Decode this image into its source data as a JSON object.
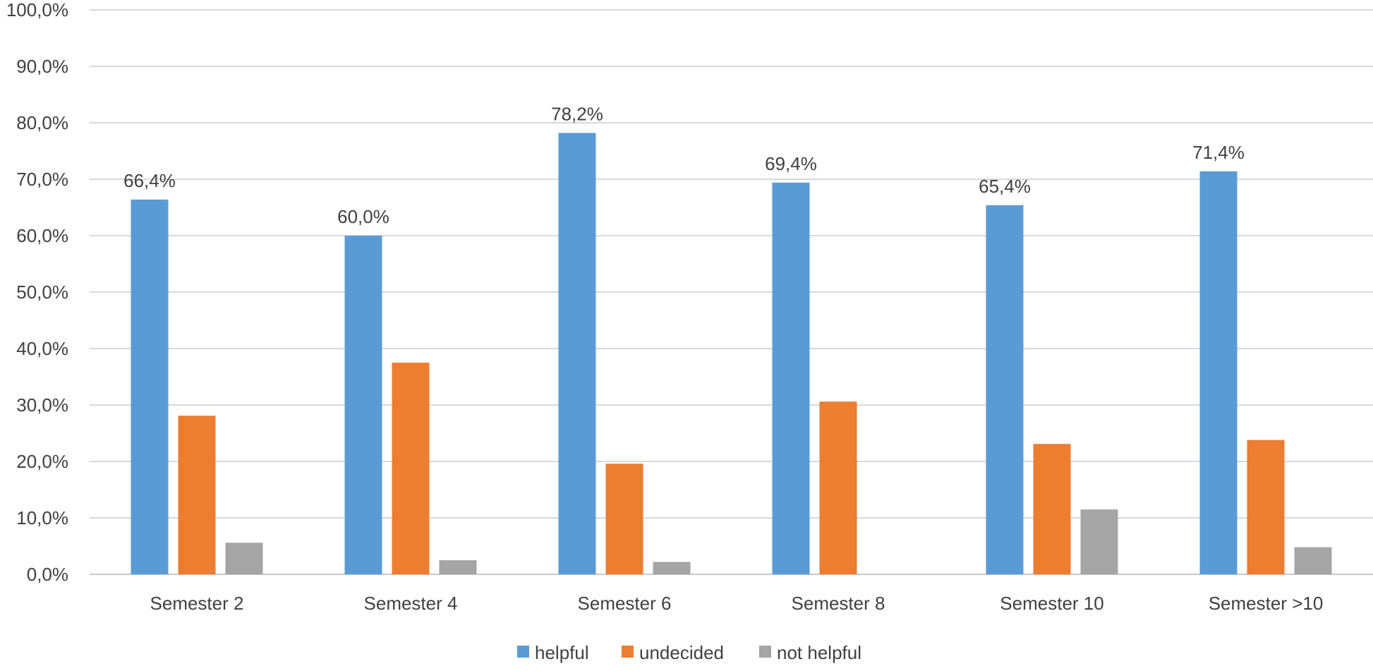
{
  "chart_data": {
    "type": "bar",
    "title": "",
    "xlabel": "",
    "ylabel": "",
    "ylim": [
      0,
      100
    ],
    "ytick_step": 10,
    "ytick_labels": [
      "0,0%",
      "10,0%",
      "20,0%",
      "30,0%",
      "40,0%",
      "50,0%",
      "60,0%",
      "70,0%",
      "80,0%",
      "90,0%",
      "100,0%"
    ],
    "grid": true,
    "legend_position": "bottom-center",
    "categories": [
      "Semester 2",
      "Semester 4",
      "Semester 6",
      "Semester 8",
      "Semester 10",
      "Semester >10"
    ],
    "series": [
      {
        "name": "helpful",
        "color": "#5b9bd5",
        "values": [
          66.4,
          60.0,
          78.2,
          69.4,
          65.4,
          71.4
        ],
        "labels": [
          "66,4%",
          "60,0%",
          "78,2%",
          "69,4%",
          "65,4%",
          "71,4%"
        ]
      },
      {
        "name": "undecided",
        "color": "#ed7d31",
        "values": [
          28.1,
          37.5,
          19.6,
          30.6,
          23.1,
          23.8
        ]
      },
      {
        "name": "not helpful",
        "color": "#a5a5a5",
        "values": [
          5.6,
          2.5,
          2.2,
          0.0,
          11.5,
          4.8
        ]
      }
    ]
  }
}
